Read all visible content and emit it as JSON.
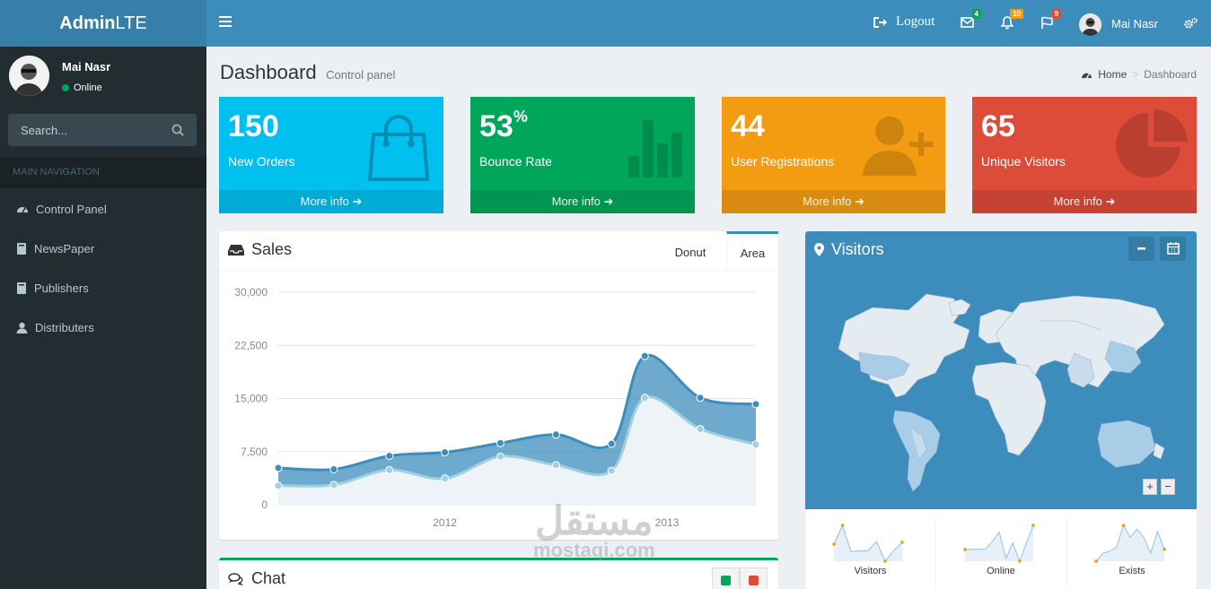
{
  "brand": {
    "bold": "Admin",
    "light": "LTE"
  },
  "topnav": {
    "logout_label": "Logout",
    "mail_count": "4",
    "notif_count": "10",
    "flag_count": "9",
    "user_name": "Mai Nasr"
  },
  "sidebar": {
    "user_name": "Mai Nasr",
    "status": "Online",
    "search_placeholder": "Search...",
    "header": "MAIN NAVIGATION",
    "items": [
      {
        "label": "Control Panel",
        "icon": "dashboard-icon"
      },
      {
        "label": "NewsPaper",
        "icon": "book-icon"
      },
      {
        "label": "Publishers",
        "icon": "book-icon"
      },
      {
        "label": "Distributers",
        "icon": "user-icon"
      }
    ]
  },
  "content_header": {
    "title": "Dashboard",
    "subtitle": "Control panel"
  },
  "breadcrumb": {
    "home": "Home",
    "current": "Dashboard"
  },
  "stat_boxes": [
    {
      "value": "150",
      "sup": "",
      "label": "New Orders",
      "footer": "More info",
      "color": "#00c0ef",
      "icon": "shopping-bag-icon"
    },
    {
      "value": "53",
      "sup": "%",
      "label": "Bounce Rate",
      "footer": "More info",
      "color": "#00a65a",
      "icon": "bar-chart-icon"
    },
    {
      "value": "44",
      "sup": "",
      "label": "User Registrations",
      "footer": "More info",
      "color": "#f39c12",
      "icon": "user-plus-icon"
    },
    {
      "value": "65",
      "sup": "",
      "label": "Unique Visitors",
      "footer": "More info",
      "color": "#dd4b39",
      "icon": "pie-chart-icon"
    }
  ],
  "sales": {
    "title": "Sales",
    "tabs": [
      "Donut",
      "Area"
    ],
    "active_tab": "Area"
  },
  "chart_data": {
    "type": "area",
    "x": [
      2011.25,
      2011.5,
      2011.75,
      2012.0,
      2012.25,
      2012.5,
      2012.75,
      2012.9,
      2013.15,
      2013.4
    ],
    "x_ticks": [
      "2012",
      "2013"
    ],
    "y_ticks": [
      "0",
      "7,500",
      "15,000",
      "22,500",
      "30,000"
    ],
    "ylim": [
      0,
      30000
    ],
    "series": [
      {
        "values": [
          5200,
          5000,
          6900,
          7400,
          8700,
          9900,
          8600,
          21000,
          15100,
          14200
        ],
        "color": "#3c8dbc"
      },
      {
        "values": [
          2700,
          2800,
          4900,
          3700,
          6800,
          5600,
          4800,
          15100,
          10700,
          8500
        ],
        "color": "#a0d0e0"
      }
    ]
  },
  "visitors": {
    "title": "Visitors",
    "sparklines": [
      {
        "label": "Visitors",
        "values": [
          1000,
          1200,
          920,
          927,
          931,
          1027,
          819,
          930,
          1021
        ]
      },
      {
        "label": "Online",
        "values": [
          515,
          519,
          520,
          522,
          652,
          810,
          370,
          627,
          319,
          630,
          921
        ]
      },
      {
        "label": "Exists",
        "values": [
          15,
          19,
          20,
          22,
          33,
          27,
          31,
          27,
          19,
          30,
          21
        ]
      }
    ]
  },
  "chat": {
    "title": "Chat"
  },
  "watermark": {
    "arabic": "مستقل",
    "latin": "mostaqi.com"
  }
}
